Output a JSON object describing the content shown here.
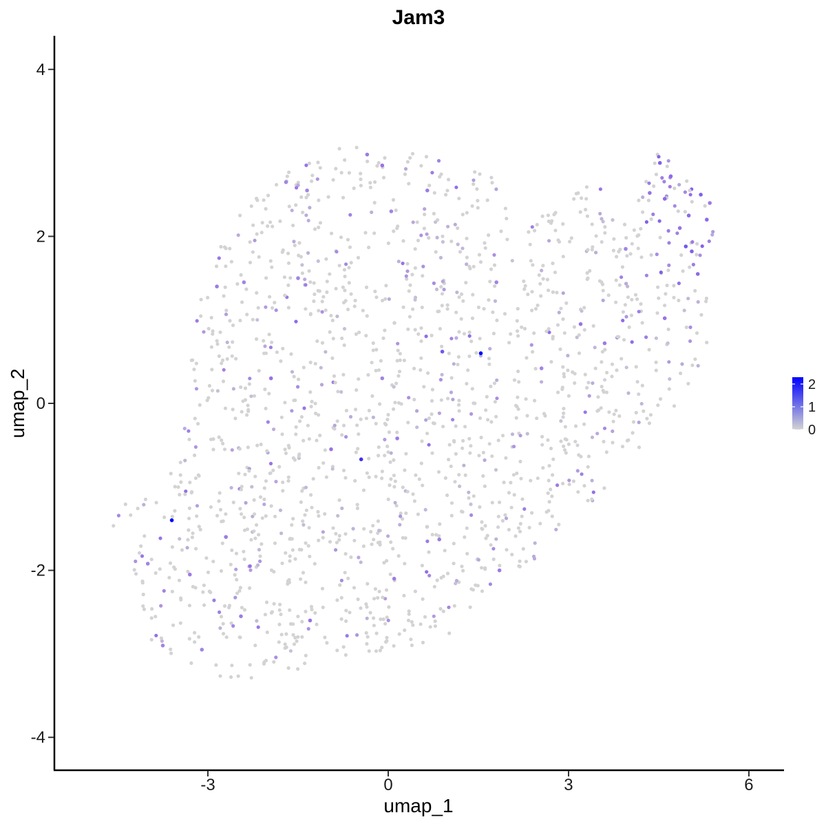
{
  "chart_data": {
    "type": "scatter",
    "title": "Jam3",
    "xlabel": "umap_1",
    "ylabel": "umap_2",
    "xlim": [
      -5.6,
      6.55
    ],
    "ylim": [
      -4.35,
      4.4
    ],
    "x_ticks": [
      -3,
      0,
      3,
      6
    ],
    "y_ticks": [
      -4,
      -2,
      0,
      2,
      4
    ],
    "x_tick_labels": [
      "-3",
      "0",
      "3",
      "6"
    ],
    "y_tick_labels": [
      "-4",
      "-2",
      "0",
      "2",
      "4"
    ],
    "grid": false,
    "color_scale": {
      "low_color": "#d3d3d3",
      "high_color": "#0000ff",
      "min": 0,
      "max": 2.3,
      "ticks": [
        0,
        1,
        2
      ],
      "tick_labels": [
        "0",
        "1",
        "2"
      ]
    },
    "legend_position": "right",
    "point_cloud": {
      "description_of_shape": "single cluster spanning lower-left to upper-right",
      "n_points": 1600,
      "seed": 7
    },
    "points": [
      {
        "x": -3.6,
        "y": -1.4,
        "value": 2.3
      },
      {
        "x": 1.54,
        "y": 0.6,
        "value": 2.3
      },
      {
        "x": -0.45,
        "y": -0.67,
        "value": 1.8
      },
      {
        "x": 0.9,
        "y": 0.62,
        "value": 1.4
      },
      {
        "x": 4.52,
        "y": 2.88,
        "value": 1.3
      },
      {
        "x": 4.7,
        "y": 2.72,
        "value": 1.2
      },
      {
        "x": 5.2,
        "y": 2.5,
        "value": 1.3
      },
      {
        "x": 5.3,
        "y": 2.2,
        "value": 1.2
      },
      {
        "x": 4.95,
        "y": 1.88,
        "value": 1.4
      },
      {
        "x": 5.05,
        "y": 1.82,
        "value": 1.3
      },
      {
        "x": 5.15,
        "y": 1.55,
        "value": 1.2
      },
      {
        "x": 4.85,
        "y": 2.1,
        "value": 1.1
      },
      {
        "x": 4.6,
        "y": 2.45,
        "value": 1.2
      },
      {
        "x": 4.35,
        "y": 2.52,
        "value": 1.1
      },
      {
        "x": 5.35,
        "y": 2.4,
        "value": 1.0
      },
      {
        "x": 5.0,
        "y": 2.25,
        "value": 1.2
      },
      {
        "x": 4.6,
        "y": 1.02,
        "value": 1.1
      },
      {
        "x": 3.2,
        "y": 0.95,
        "value": 1.1
      },
      {
        "x": 3.6,
        "y": 0.72,
        "value": 1.0
      },
      {
        "x": -0.95,
        "y": -0.55,
        "value": 1.1
      },
      {
        "x": -0.1,
        "y": 0.3,
        "value": 0.9
      },
      {
        "x": 0.15,
        "y": -0.42,
        "value": 1.0
      },
      {
        "x": 0.65,
        "y": 2.55,
        "value": 1.0
      },
      {
        "x": 0.05,
        "y": 2.3,
        "value": 0.9
      },
      {
        "x": -0.35,
        "y": 2.98,
        "value": 1.0
      },
      {
        "x": -0.1,
        "y": 2.85,
        "value": 1.1
      },
      {
        "x": -1.95,
        "y": 0.3,
        "value": 1.1
      },
      {
        "x": -2.3,
        "y": -1.95,
        "value": 1.1
      },
      {
        "x": -2.45,
        "y": -2.55,
        "value": 1.0
      },
      {
        "x": -1.3,
        "y": -2.6,
        "value": 1.1
      },
      {
        "x": -2.7,
        "y": -1.6,
        "value": 1.0
      },
      {
        "x": -3.3,
        "y": -2.05,
        "value": 1.0
      },
      {
        "x": -3.1,
        "y": -2.95,
        "value": 0.9
      },
      {
        "x": 1.85,
        "y": -2.0,
        "value": 1.0
      },
      {
        "x": 0.1,
        "y": -2.1,
        "value": 1.0
      },
      {
        "x": 0.85,
        "y": -1.63,
        "value": 1.0
      },
      {
        "x": -2.85,
        "y": 1.4,
        "value": 1.0
      },
      {
        "x": -2.4,
        "y": 1.45,
        "value": 0.9
      },
      {
        "x": -1.5,
        "y": 1.5,
        "value": 0.9
      },
      {
        "x": 3.95,
        "y": 1.85,
        "value": 0.9
      },
      {
        "x": 2.55,
        "y": 0.42,
        "value": 0.9
      },
      {
        "x": 1.8,
        "y": 1.45,
        "value": 0.9
      },
      {
        "x": -4.0,
        "y": -1.92,
        "value": 0.9
      },
      {
        "x": -3.75,
        "y": -2.9,
        "value": 0.9
      },
      {
        "x": -1.7,
        "y": 2.65,
        "value": 0.9
      },
      {
        "x": -1.35,
        "y": 2.55,
        "value": 0.9
      }
    ]
  }
}
